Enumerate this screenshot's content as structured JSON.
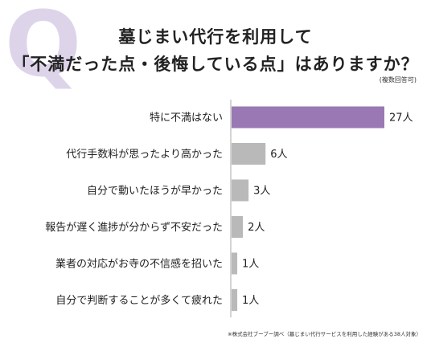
{
  "header": {
    "q_letter": "Q",
    "title_line1": "墓じまい代行を利用して",
    "title_line2": "「不満だった点・後悔している点」はありますか？",
    "note": "(複数回答可)"
  },
  "footnote": "※株式会社ブーブー調べ（墓じまい代行サービスを利用した経験がある38人対象）",
  "colors": {
    "highlight": "#9a78b4",
    "bar": "#b9b9b9",
    "q_mark": "#ddd4ea"
  },
  "chart_data": {
    "type": "bar",
    "orientation": "horizontal",
    "categories": [
      "特に不満はない",
      "代行手数料が思ったより高かった",
      "自分で動いたほうが早かった",
      "報告が遅く進捗が分からず不安だった",
      "業者の対応がお寺の不信感を招いた",
      "自分で判断することが多くて疲れた"
    ],
    "values": [
      27,
      6,
      3,
      2,
      1,
      1
    ],
    "value_labels": [
      "27人",
      "6人",
      "3人",
      "2人",
      "1人",
      "1人"
    ],
    "unit": "人",
    "highlight_index": 0,
    "xlim": [
      0,
      27
    ],
    "grid": false
  }
}
